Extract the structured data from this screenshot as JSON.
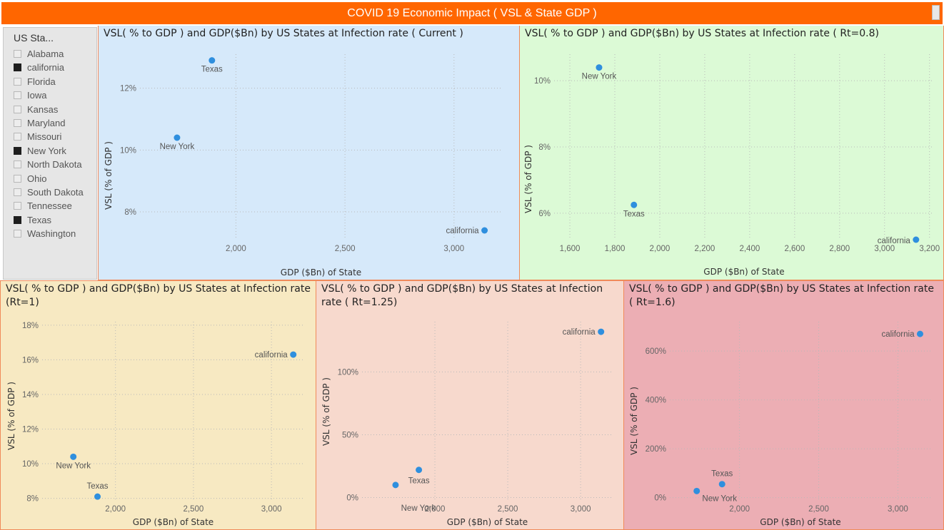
{
  "header": {
    "title": "COVID 19 Economic Impact ( VSL & State GDP )"
  },
  "slicer": {
    "title": "US Sta...",
    "items": [
      {
        "label": "Alabama",
        "checked": false
      },
      {
        "label": "california",
        "checked": true
      },
      {
        "label": "Florida",
        "checked": false
      },
      {
        "label": "Iowa",
        "checked": false
      },
      {
        "label": "Kansas",
        "checked": false
      },
      {
        "label": "Maryland",
        "checked": false
      },
      {
        "label": "Missouri",
        "checked": false
      },
      {
        "label": "New York",
        "checked": true
      },
      {
        "label": "North Dakota",
        "checked": false
      },
      {
        "label": "Ohio",
        "checked": false
      },
      {
        "label": "South Dakota",
        "checked": false
      },
      {
        "label": "Tennessee",
        "checked": false
      },
      {
        "label": "Texas",
        "checked": true
      },
      {
        "label": "Washington",
        "checked": false
      }
    ]
  },
  "colors": {
    "banner": "#ff6600",
    "point": "#2f8fde",
    "bg_current": "#d6e9fa",
    "bg_rt08": "#dcfad6",
    "bg_rt1": "#f7e9c2",
    "bg_rt125": "#f7d9cd",
    "bg_rt16": "#ecaeb4"
  },
  "chart_data": [
    {
      "type": "scatter",
      "title": "VSL( % to GDP ) and GDP($Bn) by US States at Infection rate ( Current )",
      "xlabel": "GDP ($Bn) of State",
      "ylabel": "VSL (% of GDP )",
      "x_ticks": [
        "2,000",
        "2,500",
        "3,000"
      ],
      "y_ticks": [
        "8%",
        "10%",
        "12%"
      ],
      "xlim": [
        1560,
        3220
      ],
      "ylim": [
        7.1,
        13.1
      ],
      "points": [
        {
          "name": "Texas",
          "x": 1890,
          "y": 12.9
        },
        {
          "name": "New York",
          "x": 1730,
          "y": 10.4
        },
        {
          "name": "california",
          "x": 3140,
          "y": 7.4
        }
      ]
    },
    {
      "type": "scatter",
      "title": "VSL( % to GDP ) and GDP($Bn) by US States at Infection rate ( Rt=0.8)",
      "xlabel": "GDP ($Bn) of State",
      "ylabel": "VSL (% of GDP )",
      "x_ticks": [
        "1,600",
        "1,800",
        "2,000",
        "2,200",
        "2,400",
        "2,600",
        "2,800",
        "3,000",
        "3,200"
      ],
      "y_ticks": [
        "6%",
        "8%",
        "10%"
      ],
      "xlim": [
        1530,
        3220
      ],
      "ylim": [
        5.2,
        10.8
      ],
      "points": [
        {
          "name": "New York",
          "x": 1730,
          "y": 10.4
        },
        {
          "name": "Texas",
          "x": 1885,
          "y": 6.25
        },
        {
          "name": "california",
          "x": 3140,
          "y": 5.2
        }
      ]
    },
    {
      "type": "scatter",
      "title": "VSL( % to GDP ) and GDP($Bn) by US States at Infection rate (Rt=1)",
      "xlabel": "GDP ($Bn) of State",
      "ylabel": "VSL (% of GDP )",
      "x_ticks": [
        "2,000",
        "2,500",
        "3,000"
      ],
      "y_ticks": [
        "8%",
        "10%",
        "12%",
        "14%",
        "16%",
        "18%"
      ],
      "xlim": [
        1530,
        3210
      ],
      "ylim": [
        7.9,
        18.2
      ],
      "points": [
        {
          "name": "california",
          "x": 3140,
          "y": 16.3
        },
        {
          "name": "New York",
          "x": 1730,
          "y": 10.4
        },
        {
          "name": "Texas",
          "x": 1885,
          "y": 8.1
        }
      ]
    },
    {
      "type": "scatter",
      "title": "VSL( % to GDP ) and GDP($Bn) by US States at Infection rate ( Rt=1.25)",
      "xlabel": "GDP ($Bn) of State",
      "ylabel": "VSL (% of GDP )",
      "x_ticks": [
        "2,000",
        "2,500",
        "3,000"
      ],
      "y_ticks": [
        "0%",
        "50%",
        "100%"
      ],
      "xlim": [
        1500,
        3220
      ],
      "ylim": [
        -2,
        140
      ],
      "points": [
        {
          "name": "california",
          "x": 3140,
          "y": 132
        },
        {
          "name": "Texas",
          "x": 1890,
          "y": 22
        },
        {
          "name": "New York",
          "x": 1730,
          "y": 10
        }
      ]
    },
    {
      "type": "scatter",
      "title": "VSL( % to GDP ) and GDP($Bn) by US States at Infection rate ( Rt=1.6)",
      "xlabel": "GDP ($Bn) of State",
      "ylabel": "VSL (% of GDP )",
      "x_ticks": [
        "2,000",
        "2,500",
        "3,000"
      ],
      "y_ticks": [
        "0%",
        "200%",
        "400%",
        "600%"
      ],
      "xlim": [
        1560,
        3210
      ],
      "ylim": [
        -10,
        720
      ],
      "points": [
        {
          "name": "california",
          "x": 3140,
          "y": 670
        },
        {
          "name": "Texas",
          "x": 1890,
          "y": 55
        },
        {
          "name": "New York",
          "x": 1730,
          "y": 27
        }
      ]
    }
  ]
}
